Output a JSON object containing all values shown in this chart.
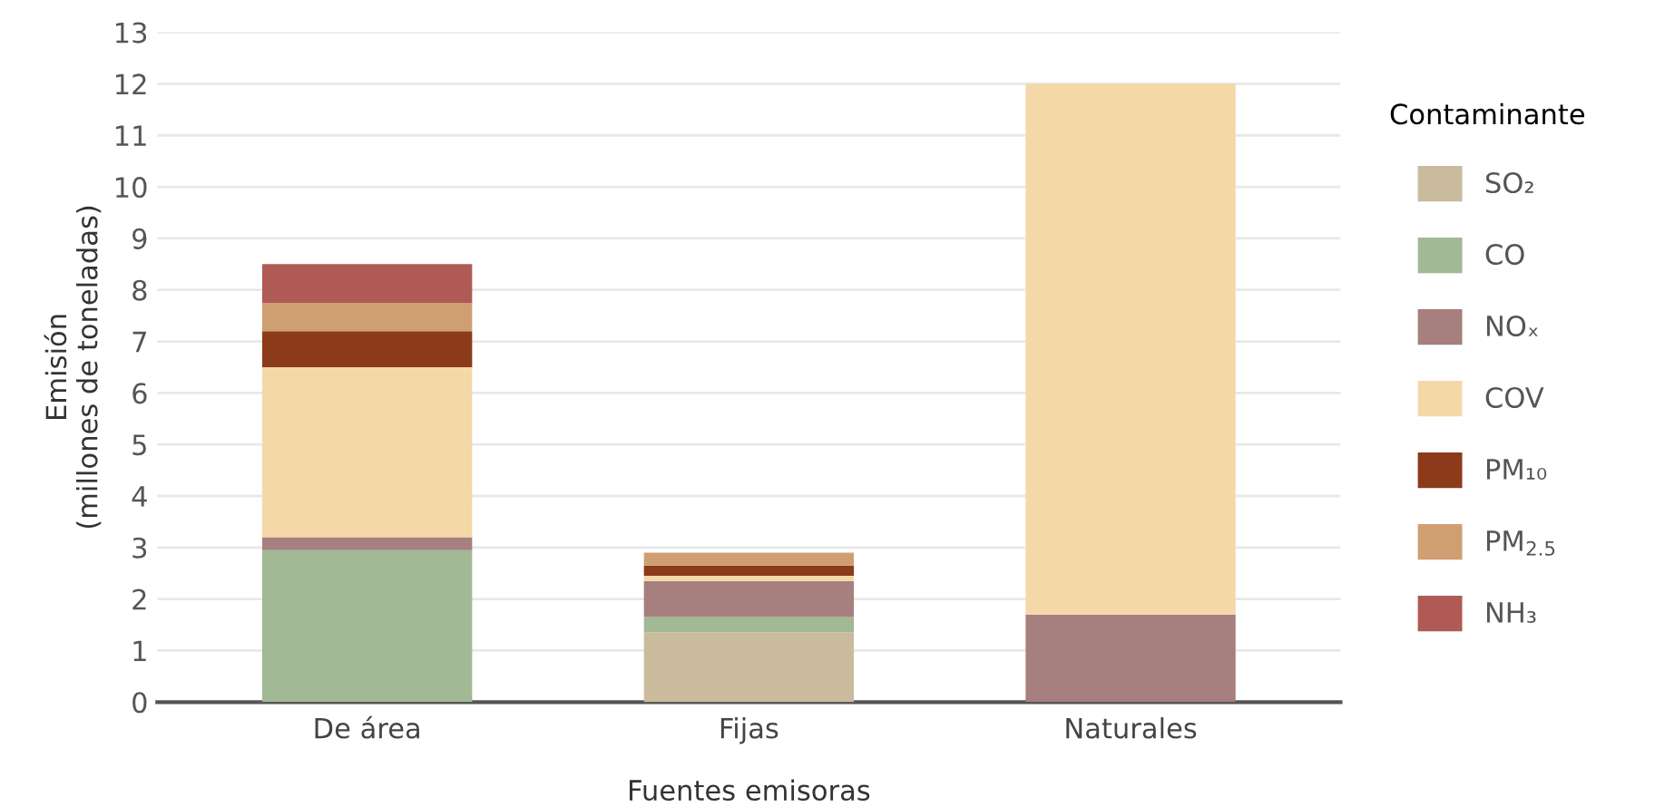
{
  "chart_data": {
    "type": "bar",
    "stacked": true,
    "xlabel": "Fuentes emisoras",
    "ylabel": "Emisión\n(millones de toneladas)",
    "legend_title": "Contaminante",
    "categories": [
      "De área",
      "Fijas",
      "Naturales"
    ],
    "series": [
      {
        "name": "SO₂",
        "color": "#cbbb9d",
        "values": [
          0,
          1.35,
          0
        ]
      },
      {
        "name": "CO",
        "color": "#a1b994",
        "values": [
          2.95,
          0.3,
          0
        ]
      },
      {
        "name": "NOₓ",
        "color": "#a67f7e",
        "values": [
          0.25,
          0.7,
          1.7
        ]
      },
      {
        "name": "COV",
        "color": "#f5d8a8",
        "values": [
          3.3,
          0.1,
          10.3
        ]
      },
      {
        "name": "PM₁₀",
        "color": "#8b3a1a",
        "values": [
          0.7,
          0.2,
          0
        ]
      },
      {
        "name": "PM$_{2.5}$",
        "color": "#cf9f72",
        "values": [
          0.55,
          0.25,
          0
        ]
      },
      {
        "name": "NH₃",
        "color": "#b05a55",
        "values": [
          0.75,
          0,
          0
        ]
      }
    ],
    "ylim": [
      0,
      13
    ],
    "yticks": [
      0,
      1,
      2,
      3,
      4,
      5,
      6,
      7,
      8,
      9,
      10,
      11,
      12,
      13
    ],
    "grid": "y",
    "legend": "right"
  }
}
